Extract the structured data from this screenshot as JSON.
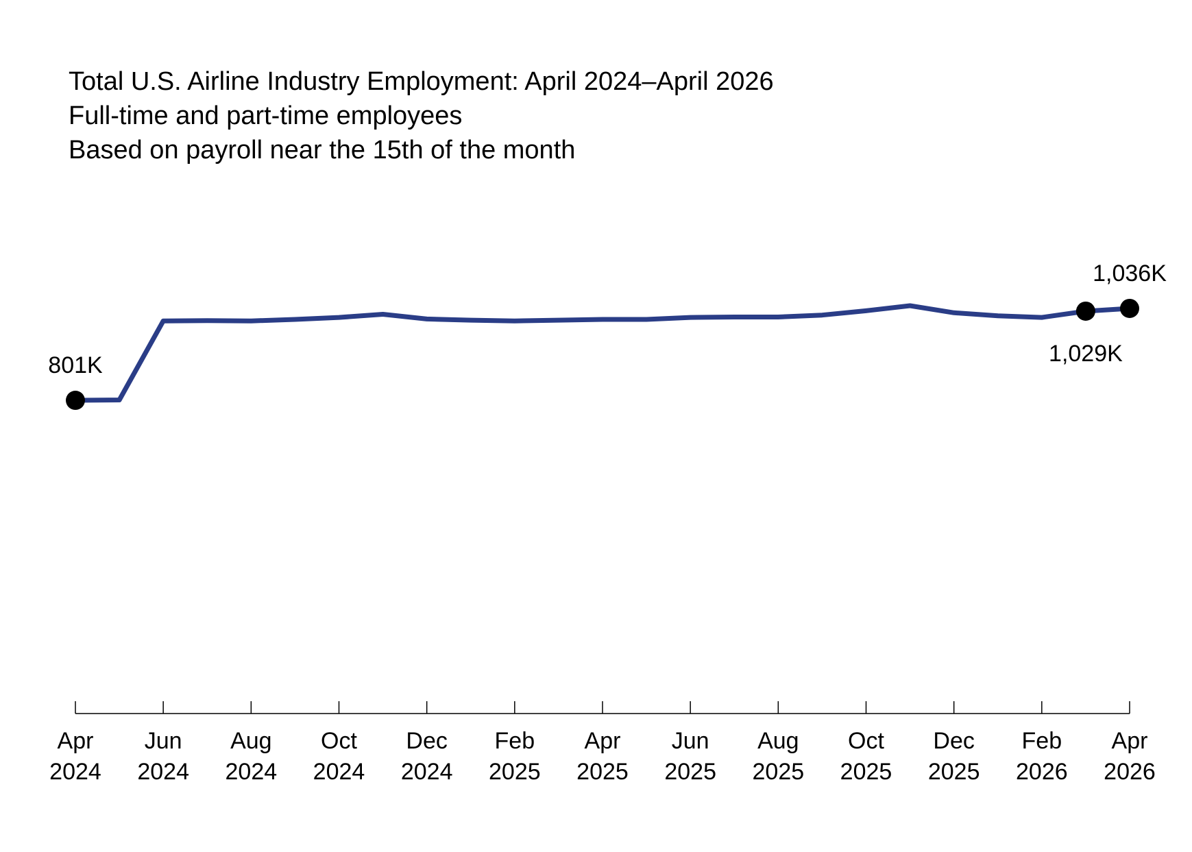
{
  "chart_data": {
    "type": "line",
    "title": "Total U.S. Airline Industry Employment: April 2024–April 2026",
    "subtitle_lines": [
      "Full-time and part-time employees",
      "Based on payroll near the 15th of the month"
    ],
    "xlabel": "",
    "ylabel": "",
    "grid": false,
    "line_color": "#2a3d87",
    "marker_color": "#000000",
    "x": [
      "2024-04",
      "2024-05",
      "2024-06",
      "2024-07",
      "2024-08",
      "2024-09",
      "2024-10",
      "2024-11",
      "2024-12",
      "2025-01",
      "2025-02",
      "2025-03",
      "2025-04",
      "2025-05",
      "2025-06",
      "2025-07",
      "2025-08",
      "2025-09",
      "2025-10",
      "2025-11",
      "2025-12",
      "2026-01",
      "2026-02",
      "2026-03",
      "2026-04"
    ],
    "series": [
      {
        "values": [
          801,
          802,
          1004,
          1005,
          1004,
          1008,
          1013,
          1021,
          1009,
          1006,
          1004,
          1006,
          1008,
          1008,
          1013,
          1014,
          1014,
          1019,
          1030,
          1043,
          1025,
          1017,
          1013,
          1029,
          1036
        ]
      }
    ],
    "ylim": [
      0,
      1050
    ],
    "x_ticks": [
      {
        "month": "Apr",
        "year": "2024"
      },
      {
        "month": "Jun",
        "year": "2024"
      },
      {
        "month": "Aug",
        "year": "2024"
      },
      {
        "month": "Oct",
        "year": "2024"
      },
      {
        "month": "Dec",
        "year": "2024"
      },
      {
        "month": "Feb",
        "year": "2025"
      },
      {
        "month": "Apr",
        "year": "2025"
      },
      {
        "month": "Jun",
        "year": "2025"
      },
      {
        "month": "Aug",
        "year": "2025"
      },
      {
        "month": "Oct",
        "year": "2025"
      },
      {
        "month": "Dec",
        "year": "2025"
      },
      {
        "month": "Feb",
        "year": "2026"
      },
      {
        "month": "Apr",
        "year": "2026"
      }
    ],
    "annotations": [
      {
        "index": 0,
        "text": "801K",
        "position": "above"
      },
      {
        "index": 23,
        "text": "1,029K",
        "position": "below"
      },
      {
        "index": 24,
        "text": "1,036K",
        "position": "above"
      }
    ]
  }
}
